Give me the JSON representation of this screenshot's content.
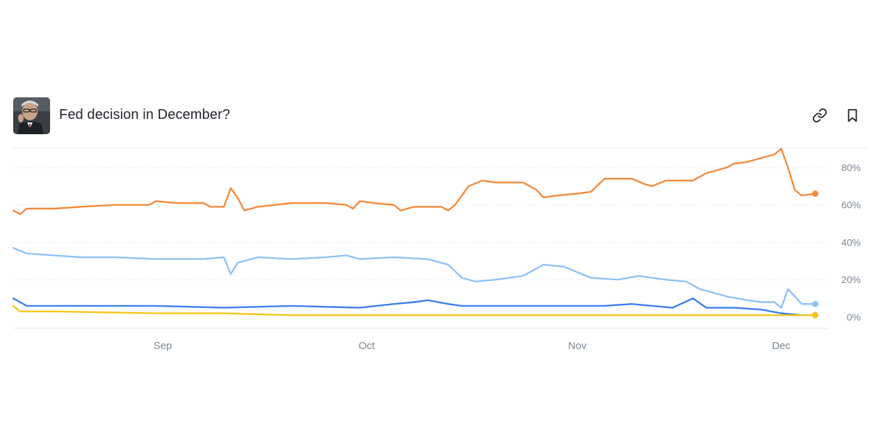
{
  "market": {
    "title": "Fed decision in December?",
    "avatar_alt": "Jerome Powell"
  },
  "icons": {
    "link": "link-icon",
    "bookmark": "bookmark-icon"
  },
  "colors": {
    "series_orange": "#f4893b",
    "series_light_blue": "#8ec2f6",
    "series_blue": "#3d7ef0",
    "series_yellow": "#f5c518",
    "grid": "#e5e7eb",
    "axis_text": "#7b8594"
  },
  "chart_data": {
    "type": "line",
    "x_ticks": [
      "Sep",
      "Oct",
      "Nov",
      "Dec"
    ],
    "y_ticks": [
      "0%",
      "20%",
      "40%",
      "60%",
      "80%"
    ],
    "ylim": [
      0,
      90
    ],
    "grid": true,
    "legend": "none",
    "x_range": [
      "2025-08-10",
      "2025-12-08"
    ],
    "series": [
      {
        "color": "#f4893b",
        "points": [
          [
            "2025-08-10",
            57
          ],
          [
            "2025-08-11",
            55
          ],
          [
            "2025-08-12",
            58
          ],
          [
            "2025-08-16",
            58
          ],
          [
            "2025-08-20",
            59
          ],
          [
            "2025-08-25",
            60
          ],
          [
            "2025-08-30",
            60
          ],
          [
            "2025-08-31",
            62
          ],
          [
            "2025-09-03",
            61
          ],
          [
            "2025-09-07",
            61
          ],
          [
            "2025-09-08",
            59
          ],
          [
            "2025-09-10",
            59
          ],
          [
            "2025-09-11",
            69
          ],
          [
            "2025-09-12",
            64
          ],
          [
            "2025-09-13",
            57
          ],
          [
            "2025-09-15",
            59
          ],
          [
            "2025-09-20",
            61
          ],
          [
            "2025-09-25",
            61
          ],
          [
            "2025-09-28",
            60
          ],
          [
            "2025-09-29",
            58
          ],
          [
            "2025-09-30",
            62
          ],
          [
            "2025-10-02",
            61
          ],
          [
            "2025-10-05",
            60
          ],
          [
            "2025-10-06",
            57
          ],
          [
            "2025-10-08",
            59
          ],
          [
            "2025-10-12",
            59
          ],
          [
            "2025-10-13",
            57
          ],
          [
            "2025-10-14",
            60
          ],
          [
            "2025-10-15",
            65
          ],
          [
            "2025-10-16",
            70
          ],
          [
            "2025-10-18",
            73
          ],
          [
            "2025-10-20",
            72
          ],
          [
            "2025-10-24",
            72
          ],
          [
            "2025-10-26",
            68
          ],
          [
            "2025-10-27",
            64
          ],
          [
            "2025-10-29",
            65
          ],
          [
            "2025-11-01",
            66
          ],
          [
            "2025-11-03",
            67
          ],
          [
            "2025-11-05",
            74
          ],
          [
            "2025-11-09",
            74
          ],
          [
            "2025-11-11",
            71
          ],
          [
            "2025-11-12",
            70
          ],
          [
            "2025-11-14",
            73
          ],
          [
            "2025-11-18",
            73
          ],
          [
            "2025-11-20",
            77
          ],
          [
            "2025-11-23",
            80
          ],
          [
            "2025-11-24",
            82
          ],
          [
            "2025-11-26",
            83
          ],
          [
            "2025-11-28",
            85
          ],
          [
            "2025-11-30",
            87
          ],
          [
            "2025-12-01",
            90
          ],
          [
            "2025-12-02",
            80
          ],
          [
            "2025-12-03",
            68
          ],
          [
            "2025-12-04",
            65
          ],
          [
            "2025-12-06",
            66
          ]
        ]
      },
      {
        "color": "#8ec2f6",
        "points": [
          [
            "2025-08-10",
            37
          ],
          [
            "2025-08-12",
            34
          ],
          [
            "2025-08-16",
            33
          ],
          [
            "2025-08-20",
            32
          ],
          [
            "2025-08-25",
            32
          ],
          [
            "2025-08-31",
            31
          ],
          [
            "2025-09-03",
            31
          ],
          [
            "2025-09-07",
            31
          ],
          [
            "2025-09-10",
            32
          ],
          [
            "2025-09-11",
            23
          ],
          [
            "2025-09-12",
            29
          ],
          [
            "2025-09-15",
            32
          ],
          [
            "2025-09-20",
            31
          ],
          [
            "2025-09-25",
            32
          ],
          [
            "2025-09-28",
            33
          ],
          [
            "2025-09-30",
            31
          ],
          [
            "2025-10-05",
            32
          ],
          [
            "2025-10-10",
            31
          ],
          [
            "2025-10-13",
            28
          ],
          [
            "2025-10-15",
            21
          ],
          [
            "2025-10-17",
            19
          ],
          [
            "2025-10-20",
            20
          ],
          [
            "2025-10-24",
            22
          ],
          [
            "2025-10-27",
            28
          ],
          [
            "2025-10-30",
            27
          ],
          [
            "2025-11-03",
            21
          ],
          [
            "2025-11-07",
            20
          ],
          [
            "2025-11-10",
            22
          ],
          [
            "2025-11-14",
            20
          ],
          [
            "2025-11-17",
            19
          ],
          [
            "2025-11-19",
            15
          ],
          [
            "2025-11-21",
            13
          ],
          [
            "2025-11-23",
            11
          ],
          [
            "2025-11-26",
            9
          ],
          [
            "2025-11-28",
            8
          ],
          [
            "2025-11-30",
            8
          ],
          [
            "2025-12-01",
            5
          ],
          [
            "2025-12-02",
            15
          ],
          [
            "2025-12-04",
            7
          ],
          [
            "2025-12-06",
            7
          ]
        ]
      },
      {
        "color": "#3d7ef0",
        "points": [
          [
            "2025-08-10",
            10
          ],
          [
            "2025-08-12",
            6
          ],
          [
            "2025-08-20",
            6
          ],
          [
            "2025-08-31",
            6
          ],
          [
            "2025-09-10",
            5
          ],
          [
            "2025-09-20",
            6
          ],
          [
            "2025-09-30",
            5
          ],
          [
            "2025-10-05",
            7
          ],
          [
            "2025-10-08",
            8
          ],
          [
            "2025-10-10",
            9
          ],
          [
            "2025-10-13",
            7
          ],
          [
            "2025-10-15",
            6
          ],
          [
            "2025-10-20",
            6
          ],
          [
            "2025-10-26",
            6
          ],
          [
            "2025-11-01",
            6
          ],
          [
            "2025-11-05",
            6
          ],
          [
            "2025-11-09",
            7
          ],
          [
            "2025-11-12",
            6
          ],
          [
            "2025-11-15",
            5
          ],
          [
            "2025-11-18",
            10
          ],
          [
            "2025-11-20",
            5
          ],
          [
            "2025-11-24",
            5
          ],
          [
            "2025-11-28",
            4
          ],
          [
            "2025-12-01",
            2
          ],
          [
            "2025-12-04",
            1
          ],
          [
            "2025-12-06",
            1
          ]
        ]
      },
      {
        "color": "#f5c518",
        "points": [
          [
            "2025-08-10",
            6
          ],
          [
            "2025-08-11",
            3
          ],
          [
            "2025-08-16",
            3
          ],
          [
            "2025-08-31",
            2
          ],
          [
            "2025-09-10",
            2
          ],
          [
            "2025-09-20",
            1
          ],
          [
            "2025-09-30",
            1
          ],
          [
            "2025-10-10",
            1
          ],
          [
            "2025-10-20",
            1
          ],
          [
            "2025-10-31",
            1
          ],
          [
            "2025-11-10",
            1
          ],
          [
            "2025-11-20",
            1
          ],
          [
            "2025-12-01",
            1
          ],
          [
            "2025-12-06",
            1
          ]
        ]
      }
    ]
  }
}
